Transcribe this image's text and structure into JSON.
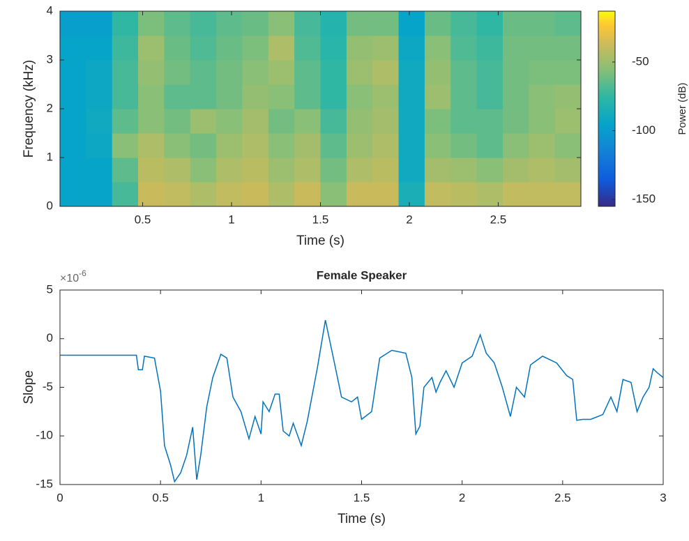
{
  "chart_data": [
    {
      "type": "heatmap",
      "xlabel": "Time (s)",
      "ylabel": "Frequency (kHz)",
      "xlim": [
        0.035,
        2.965
      ],
      "ylim": [
        0,
        4
      ],
      "xticks": [
        0.5,
        1,
        1.5,
        2,
        2.5
      ],
      "yticks": [
        0,
        1,
        2,
        3,
        4
      ],
      "x": [
        0.108,
        0.255,
        0.401,
        0.548,
        0.694,
        0.841,
        0.987,
        1.134,
        1.28,
        1.427,
        1.573,
        1.72,
        1.866,
        2.013,
        2.159,
        2.306,
        2.452,
        2.599,
        2.745,
        2.892
      ],
      "y": [
        0.25,
        0.75,
        1.25,
        1.75,
        2.25,
        2.75,
        3.25,
        3.75
      ],
      "values": [
        [
          -95,
          -95,
          -70,
          -38,
          -40,
          -45,
          -40,
          -38,
          -45,
          -38,
          -55,
          -38,
          -38,
          -85,
          -40,
          -42,
          -45,
          -40,
          -40,
          -40
        ],
        [
          -95,
          -95,
          -65,
          -42,
          -45,
          -55,
          -45,
          -42,
          -50,
          -45,
          -60,
          -45,
          -42,
          -90,
          -48,
          -50,
          -55,
          -48,
          -45,
          -48
        ],
        [
          -95,
          -92,
          -55,
          -45,
          -55,
          -60,
          -50,
          -45,
          -55,
          -48,
          -65,
          -50,
          -45,
          -90,
          -55,
          -60,
          -65,
          -55,
          -50,
          -55
        ],
        [
          -95,
          -90,
          -65,
          -55,
          -60,
          -50,
          -55,
          -48,
          -60,
          -55,
          -70,
          -52,
          -48,
          -90,
          -58,
          -65,
          -65,
          -60,
          -55,
          -50
        ],
        [
          -95,
          -92,
          -70,
          -55,
          -65,
          -65,
          -60,
          -52,
          -55,
          -65,
          -75,
          -55,
          -50,
          -90,
          -50,
          -65,
          -70,
          -60,
          -55,
          -52
        ],
        [
          -95,
          -92,
          -70,
          -52,
          -60,
          -65,
          -60,
          -55,
          -50,
          -65,
          -75,
          -50,
          -45,
          -90,
          -52,
          -65,
          -70,
          -60,
          -58,
          -58
        ],
        [
          -95,
          -95,
          -72,
          -50,
          -62,
          -68,
          -62,
          -58,
          -45,
          -68,
          -78,
          -52,
          -50,
          -92,
          -55,
          -68,
          -72,
          -60,
          -60,
          -60
        ],
        [
          -98,
          -98,
          -75,
          -58,
          -65,
          -70,
          -65,
          -62,
          -55,
          -70,
          -80,
          -60,
          -60,
          -95,
          -62,
          -70,
          -75,
          -62,
          -62,
          -65
        ]
      ],
      "colormap": "parula",
      "clim": [
        -155,
        -13
      ],
      "cticks": [
        -150,
        -100,
        -50
      ],
      "clabel": "Power (dB)"
    },
    {
      "type": "line",
      "title": "Female Speaker",
      "xlabel": "Time (s)",
      "ylabel": "Slope",
      "y_multiplier": {
        "base": "×10",
        "exponent": "-6"
      },
      "xlim": [
        0,
        3
      ],
      "ylim": [
        -15,
        5
      ],
      "xticks": [
        0,
        0.5,
        1,
        1.5,
        2,
        2.5,
        3
      ],
      "yticks": [
        -15,
        -10,
        -5,
        0,
        5
      ],
      "x": [
        0,
        0.38,
        0.39,
        0.41,
        0.42,
        0.47,
        0.5,
        0.52,
        0.55,
        0.57,
        0.6,
        0.63,
        0.66,
        0.68,
        0.7,
        0.73,
        0.76,
        0.8,
        0.83,
        0.86,
        0.9,
        0.94,
        0.97,
        1.0,
        1.01,
        1.04,
        1.07,
        1.09,
        1.11,
        1.14,
        1.16,
        1.2,
        1.23,
        1.28,
        1.32,
        1.36,
        1.4,
        1.45,
        1.48,
        1.5,
        1.55,
        1.59,
        1.65,
        1.72,
        1.75,
        1.77,
        1.79,
        1.81,
        1.85,
        1.87,
        1.89,
        1.92,
        1.96,
        2.0,
        2.05,
        2.09,
        2.12,
        2.16,
        2.2,
        2.24,
        2.27,
        2.31,
        2.34,
        2.4,
        2.47,
        2.52,
        2.55,
        2.57,
        2.6,
        2.64,
        2.7,
        2.74,
        2.77,
        2.8,
        2.84,
        2.87,
        2.9,
        2.93,
        2.95,
        2.97,
        3.0
      ],
      "series": [
        {
          "color": "#0072bd",
          "values": [
            -1.7,
            -1.7,
            -3.2,
            -3.2,
            -1.8,
            -2.0,
            -5.4,
            -11,
            -13,
            -14.7,
            -13.8,
            -12,
            -9.1,
            -14.5,
            -12,
            -7,
            -4,
            -1.6,
            -2,
            -6,
            -7.5,
            -10.3,
            -8,
            -9.8,
            -6.5,
            -7.5,
            -5.7,
            -5.7,
            -9.5,
            -10,
            -8.7,
            -11,
            -8.5,
            -3,
            1.9,
            -2,
            -6,
            -6.5,
            -6,
            -8.3,
            -7.5,
            -2,
            -1.2,
            -1.5,
            -4,
            -9.8,
            -9,
            -5,
            -4,
            -5.5,
            -4.5,
            -3.3,
            -5,
            -2.5,
            -1.8,
            0.4,
            -1.5,
            -2.5,
            -5,
            -8,
            -5,
            -6,
            -2.7,
            -1.8,
            -2.5,
            -3.8,
            -4.2,
            -8.4,
            -8.3,
            -8.3,
            -7.8,
            -6,
            -7.5,
            -4.2,
            -4.5,
            -7.5,
            -6,
            -5,
            -3.1,
            -3.5,
            -4
          ]
        }
      ]
    }
  ]
}
